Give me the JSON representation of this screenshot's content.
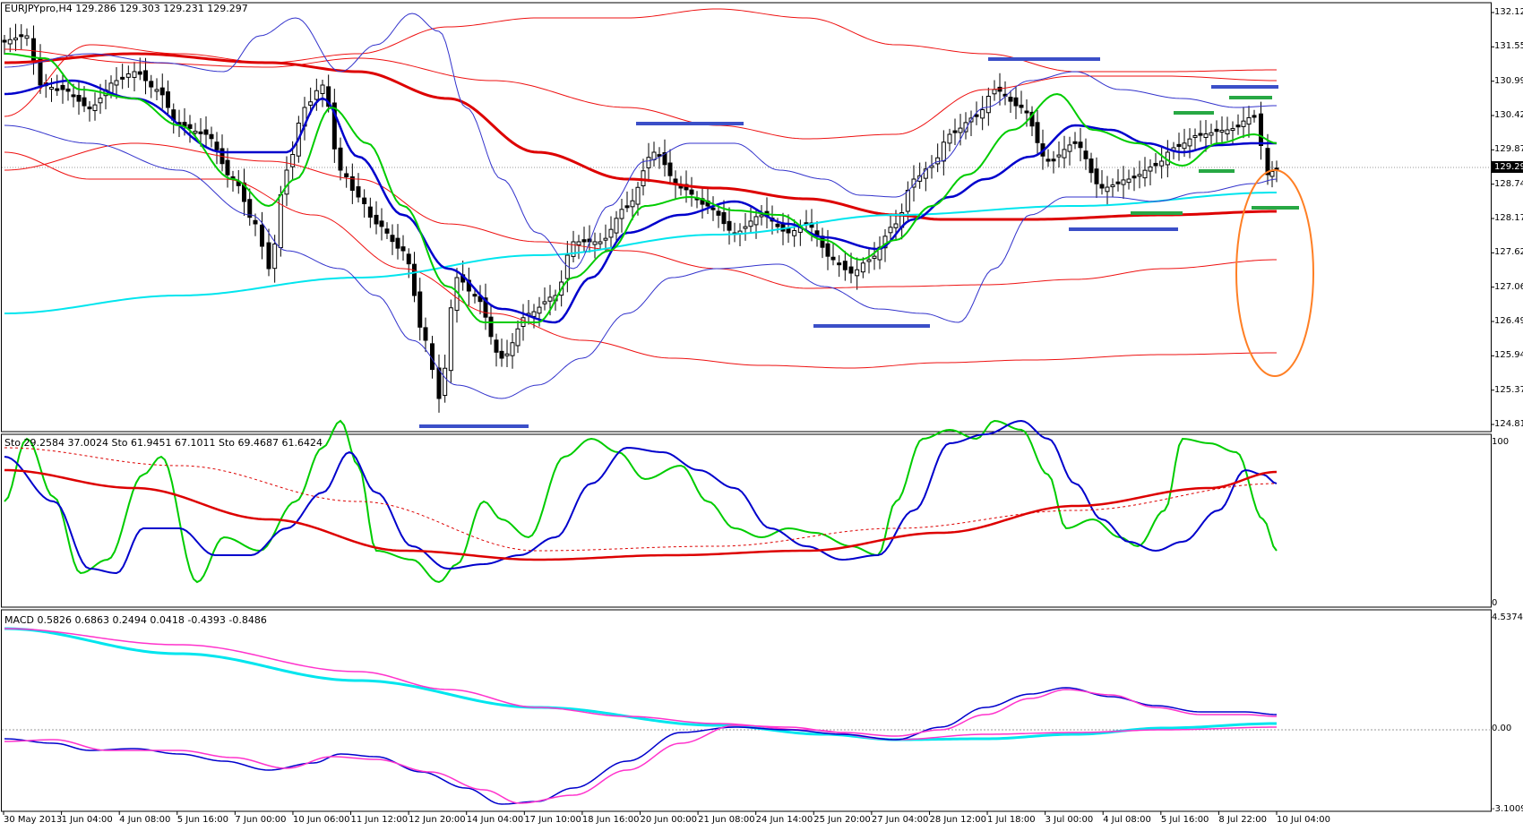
{
  "window": {
    "symbol_header": "EURJPYpro,H4  129.286 129.303 129.231 129.297"
  },
  "price_panel": {
    "y_ticks": [
      "132.120",
      "131.550",
      "130.995",
      "130.425",
      "129.870",
      "128.745",
      "128.175",
      "127.620",
      "127.065",
      "126.495",
      "125.940",
      "125.370",
      "124.815"
    ],
    "current_price": "129.297",
    "colors": {
      "bullish_candle": "#ffffff",
      "bearish_candle": "#000000",
      "ma_blue": "#0000cc",
      "ma_green": "#00cc00",
      "ma_red": "#dd0000",
      "ma_cyan": "#00e5ee",
      "bollinger_blue": "#3333cc",
      "envelope_red": "#ee1111",
      "support_resistance_blue": "#3b4fc8",
      "support_resistance_green": "#27a844",
      "annotation_ellipse": "#ff7f24"
    }
  },
  "stochastic_panel": {
    "label": "Sto 29.2584 37.0024  Sto 61.9451 67.1011  Sto 69.4687 61.6424",
    "y_ticks": [
      "100",
      "0"
    ]
  },
  "macd_panel": {
    "label": "MACD 0.5826 0.6863 0.2494 0.0418 -0.4393 -0.8486",
    "y_ticks": [
      "4.5374",
      "0.00",
      "-3.1009"
    ]
  },
  "time_axis": {
    "labels": [
      "30 May 2013",
      "1 Jun 04:00",
      "4 Jun 08:00",
      "5 Jun 16:00",
      "7 Jun 00:00",
      "10 Jun 06:00",
      "11 Jun 12:00",
      "12 Jun 20:00",
      "14 Jun 04:00",
      "17 Jun 10:00",
      "18 Jun 16:00",
      "20 Jun 00:00",
      "21 Jun 08:00",
      "24 Jun 14:00",
      "25 Jun 20:00",
      "27 Jun 04:00",
      "28 Jun 12:00",
      "1 Jul 18:00",
      "3 Jul 00:00",
      "4 Jul 08:00",
      "5 Jul 16:00",
      "8 Jul 22:00",
      "10 Jul 04:00"
    ]
  }
}
